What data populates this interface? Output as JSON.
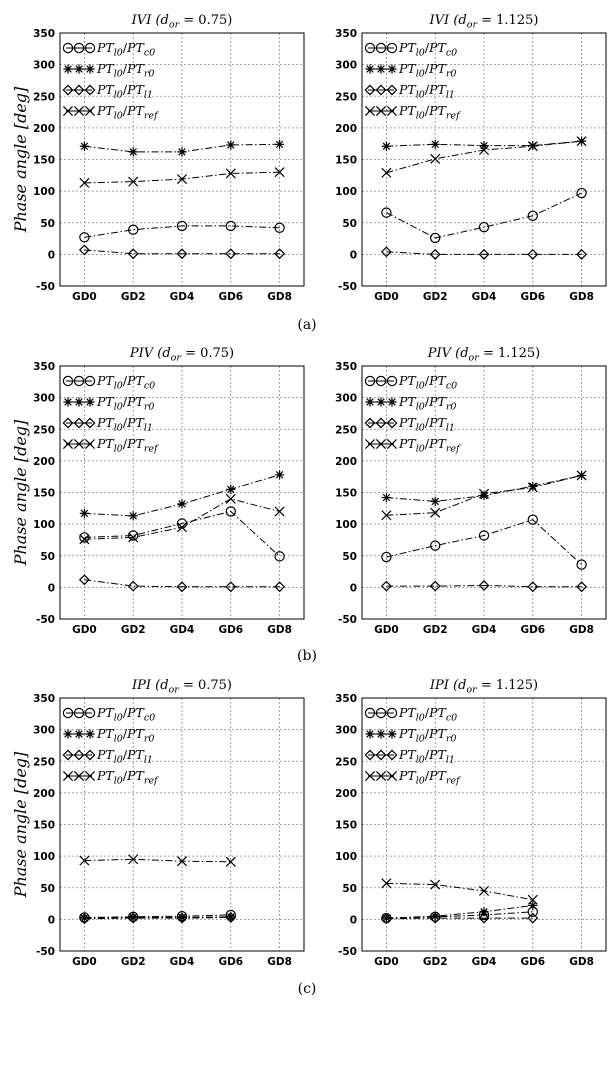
{
  "sublabels": [
    "(a)",
    "(b)",
    "(c)"
  ],
  "ylabel": "Phase angle [deg]",
  "chart_data": [
    {
      "type": "line",
      "row": 0,
      "col": 0,
      "title": "IVI (d_or = 0.75)",
      "categories": [
        "GD0",
        "GD2",
        "GD4",
        "GD6",
        "GD8"
      ],
      "ylim": [
        -50,
        350
      ],
      "yticks": [
        350,
        300,
        250,
        200,
        150,
        100,
        50,
        0,
        -50
      ],
      "grid": true,
      "legend": "top-left",
      "series": [
        {
          "name": "PT_l0/PT_c0",
          "marker": "circle",
          "values": [
            27,
            39,
            45,
            45,
            42
          ]
        },
        {
          "name": "PT_l0/PT_r0",
          "marker": "star",
          "values": [
            171,
            162,
            162,
            173,
            174
          ]
        },
        {
          "name": "PT_l0/PT_l1",
          "marker": "diamond",
          "values": [
            7,
            1,
            1,
            1,
            1
          ]
        },
        {
          "name": "PT_l0/PT_ref",
          "marker": "x",
          "values": [
            113,
            115,
            119,
            128,
            130
          ]
        }
      ]
    },
    {
      "type": "line",
      "row": 0,
      "col": 1,
      "title": "IVI (d_or = 1.125)",
      "categories": [
        "GD0",
        "GD2",
        "GD4",
        "GD6",
        "GD8"
      ],
      "ylim": [
        -50,
        350
      ],
      "yticks": [
        350,
        300,
        250,
        200,
        150,
        100,
        50,
        0,
        -50
      ],
      "grid": true,
      "legend": "top-left",
      "series": [
        {
          "name": "PT_l0/PT_c0",
          "marker": "circle",
          "values": [
            66,
            26,
            43,
            61,
            97
          ]
        },
        {
          "name": "PT_l0/PT_r0",
          "marker": "star",
          "values": [
            171,
            174,
            172,
            172,
            179
          ]
        },
        {
          "name": "PT_l0/PT_l1",
          "marker": "diamond",
          "values": [
            4,
            0,
            0,
            0,
            0
          ]
        },
        {
          "name": "PT_l0/PT_ref",
          "marker": "x",
          "values": [
            129,
            151,
            165,
            171,
            179
          ]
        }
      ]
    },
    {
      "type": "line",
      "row": 1,
      "col": 0,
      "title": "PIV (d_or = 0.75)",
      "categories": [
        "GD0",
        "GD2",
        "GD4",
        "GD6",
        "GD8"
      ],
      "ylim": [
        -50,
        350
      ],
      "yticks": [
        350,
        300,
        250,
        200,
        150,
        100,
        50,
        0,
        -50
      ],
      "grid": true,
      "legend": "top-left",
      "series": [
        {
          "name": "PT_l0/PT_c0",
          "marker": "circle",
          "values": [
            79,
            82,
            101,
            120,
            49
          ]
        },
        {
          "name": "PT_l0/PT_r0",
          "marker": "star",
          "values": [
            117,
            113,
            132,
            155,
            178
          ]
        },
        {
          "name": "PT_l0/PT_l1",
          "marker": "diamond",
          "values": [
            12,
            2,
            1,
            1,
            1
          ]
        },
        {
          "name": "PT_l0/PT_ref",
          "marker": "x",
          "values": [
            76,
            79,
            95,
            140,
            120
          ]
        }
      ]
    },
    {
      "type": "line",
      "row": 1,
      "col": 1,
      "title": "PIV (d_or = 1.125)",
      "categories": [
        "GD0",
        "GD2",
        "GD4",
        "GD6",
        "GD8"
      ],
      "ylim": [
        -50,
        350
      ],
      "yticks": [
        350,
        300,
        250,
        200,
        150,
        100,
        50,
        0,
        -50
      ],
      "grid": true,
      "legend": "top-left",
      "series": [
        {
          "name": "PT_l0/PT_c0",
          "marker": "circle",
          "values": [
            48,
            66,
            82,
            107,
            36
          ]
        },
        {
          "name": "PT_l0/PT_r0",
          "marker": "star",
          "values": [
            142,
            136,
            145,
            160,
            177
          ]
        },
        {
          "name": "PT_l0/PT_l1",
          "marker": "diamond",
          "values": [
            2,
            2,
            3,
            1,
            1
          ]
        },
        {
          "name": "PT_l0/PT_ref",
          "marker": "x",
          "values": [
            114,
            118,
            148,
            158,
            177
          ]
        }
      ]
    },
    {
      "type": "line",
      "row": 2,
      "col": 0,
      "title": "IPI (d_or = 0.75)",
      "categories": [
        "GD0",
        "GD2",
        "GD4",
        "GD6",
        "GD8"
      ],
      "ylim": [
        -50,
        350
      ],
      "yticks": [
        350,
        300,
        250,
        200,
        150,
        100,
        50,
        0,
        -50
      ],
      "grid": true,
      "legend": "top-left",
      "series": [
        {
          "name": "PT_l0/PT_c0",
          "marker": "circle",
          "values": [
            3,
            4,
            5,
            7,
            null
          ]
        },
        {
          "name": "PT_l0/PT_r0",
          "marker": "star",
          "values": [
            2,
            3,
            3,
            4,
            null
          ]
        },
        {
          "name": "PT_l0/PT_l1",
          "marker": "diamond",
          "values": [
            1,
            2,
            2,
            3,
            null
          ]
        },
        {
          "name": "PT_l0/PT_ref",
          "marker": "x",
          "values": [
            93,
            95,
            92,
            91,
            null
          ]
        }
      ]
    },
    {
      "type": "line",
      "row": 2,
      "col": 1,
      "title": "IPI (d_or = 1.125)",
      "categories": [
        "GD0",
        "GD2",
        "GD4",
        "GD6",
        "GD8"
      ],
      "ylim": [
        -50,
        350
      ],
      "yticks": [
        350,
        300,
        250,
        200,
        150,
        100,
        50,
        0,
        -50
      ],
      "grid": true,
      "legend": "top-left",
      "series": [
        {
          "name": "PT_l0/PT_c0",
          "marker": "circle",
          "values": [
            2,
            4,
            7,
            12,
            null
          ]
        },
        {
          "name": "PT_l0/PT_r0",
          "marker": "star",
          "values": [
            2,
            5,
            12,
            22,
            null
          ]
        },
        {
          "name": "PT_l0/PT_l1",
          "marker": "diamond",
          "values": [
            1,
            2,
            2,
            2,
            null
          ]
        },
        {
          "name": "PT_l0/PT_ref",
          "marker": "x",
          "values": [
            57,
            55,
            45,
            31,
            null
          ]
        }
      ]
    }
  ]
}
